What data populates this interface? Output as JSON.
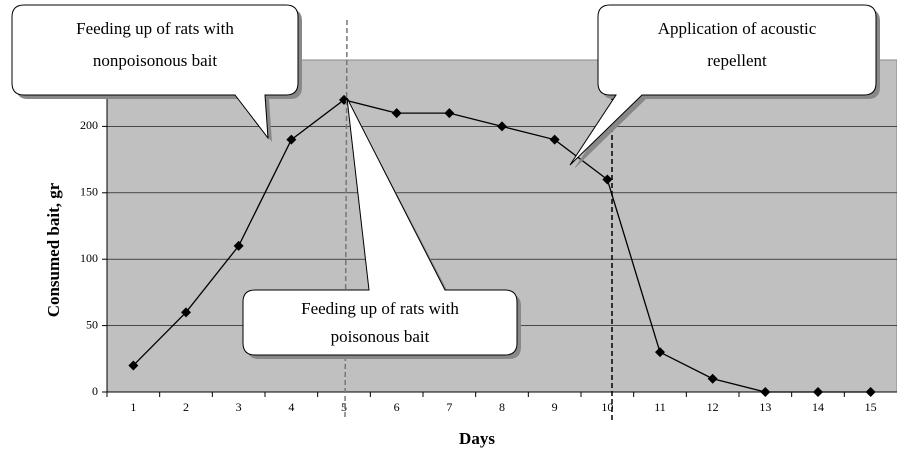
{
  "chart_data": {
    "type": "line",
    "categories": [
      "1",
      "2",
      "3",
      "4",
      "5",
      "6",
      "7",
      "8",
      "9",
      "10",
      "11",
      "12",
      "13",
      "14",
      "15"
    ],
    "values": [
      20,
      60,
      110,
      190,
      220,
      210,
      210,
      200,
      190,
      160,
      30,
      10,
      0,
      0,
      0
    ],
    "color": "#000000",
    "background": "#c0c0c0",
    "xlabel": "Days",
    "ylabel": "Consumed bait, gr",
    "ylim": [
      0,
      250
    ],
    "yticks": [
      0,
      50,
      100,
      150,
      200
    ],
    "grid": true,
    "annotations": [
      {
        "lines": [
          "Feeding up of rats with",
          "nonpoisonous bait"
        ]
      },
      {
        "lines": [
          "Feeding up of rats with",
          "poisonous bait"
        ]
      },
      {
        "lines": [
          "Application of acoustic",
          "repellent"
        ]
      }
    ]
  }
}
